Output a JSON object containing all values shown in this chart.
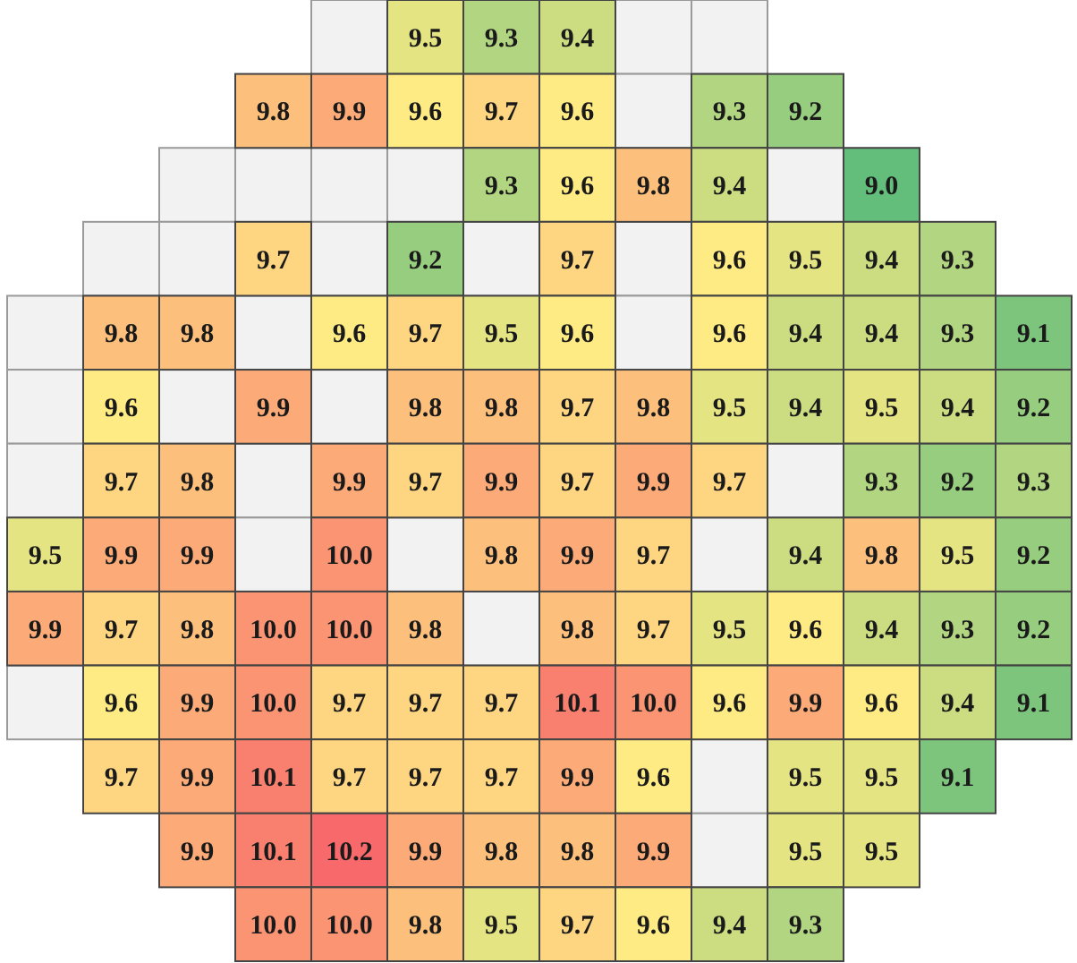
{
  "chart_data": {
    "type": "heatmap",
    "categories": [
      null,
      null,
      null,
      null,
      null,
      null,
      null,
      null,
      null,
      null,
      null,
      null,
      null,
      null
    ],
    "y_categories": [
      null,
      null,
      null,
      null,
      null,
      null,
      null,
      null,
      null,
      null,
      null,
      null,
      null
    ],
    "cells": [
      [
        null,
        null,
        null,
        null,
        null,
        9.5,
        9.3,
        9.4,
        null,
        null,
        null,
        null,
        null,
        null
      ],
      [
        null,
        null,
        null,
        9.8,
        9.9,
        9.6,
        9.7,
        9.6,
        null,
        9.3,
        9.2,
        null,
        null,
        null
      ],
      [
        null,
        null,
        null,
        null,
        null,
        null,
        9.3,
        9.6,
        9.8,
        9.4,
        null,
        9.0,
        null,
        null
      ],
      [
        null,
        null,
        null,
        9.7,
        null,
        9.2,
        null,
        9.7,
        null,
        9.6,
        9.5,
        9.4,
        9.3,
        null
      ],
      [
        null,
        9.8,
        9.8,
        null,
        9.6,
        9.7,
        9.5,
        9.6,
        null,
        9.6,
        9.4,
        9.4,
        9.3,
        9.1
      ],
      [
        null,
        9.6,
        null,
        9.9,
        null,
        9.8,
        9.8,
        9.7,
        9.8,
        9.5,
        9.4,
        9.5,
        9.4,
        9.2
      ],
      [
        null,
        9.7,
        9.8,
        null,
        9.9,
        9.7,
        9.9,
        9.7,
        9.9,
        9.7,
        null,
        9.3,
        9.2,
        9.3
      ],
      [
        9.5,
        9.9,
        9.9,
        null,
        10.0,
        null,
        9.8,
        9.9,
        9.7,
        null,
        9.4,
        9.8,
        9.5,
        9.2
      ],
      [
        9.9,
        9.7,
        9.8,
        10.0,
        10.0,
        9.8,
        null,
        9.8,
        9.7,
        9.5,
        9.6,
        9.4,
        9.3,
        9.2
      ],
      [
        null,
        9.6,
        9.9,
        10.0,
        9.7,
        9.7,
        9.7,
        10.1,
        10.0,
        9.6,
        9.9,
        9.6,
        9.4,
        9.1
      ],
      [
        null,
        9.7,
        9.9,
        10.1,
        9.7,
        9.7,
        9.7,
        9.9,
        9.6,
        null,
        9.5,
        9.5,
        9.1,
        null
      ],
      [
        null,
        null,
        9.9,
        10.1,
        10.2,
        9.9,
        9.8,
        9.8,
        9.9,
        null,
        9.5,
        9.5,
        null,
        null
      ],
      [
        null,
        null,
        null,
        10.0,
        10.0,
        9.8,
        9.5,
        9.7,
        9.6,
        9.4,
        9.3,
        null,
        null,
        null
      ]
    ],
    "cell_labels": [
      [
        null,
        null,
        null,
        null,
        null,
        "9.5",
        "9.3",
        "9.4",
        null,
        null,
        null,
        null,
        null,
        null
      ],
      [
        null,
        null,
        null,
        "9.8",
        "9.9",
        "9.6",
        "9.7",
        "9.6",
        null,
        "9.3",
        "9.2",
        null,
        null,
        null
      ],
      [
        null,
        null,
        null,
        null,
        null,
        null,
        "9.3",
        "9.6",
        "9.8",
        "9.4",
        null,
        "9.0",
        null,
        null
      ],
      [
        null,
        null,
        null,
        "9.7",
        null,
        "9.2",
        null,
        "9.7",
        null,
        "9.6",
        "9.5",
        "9.4",
        "9.3",
        null
      ],
      [
        null,
        "9.8",
        "9.8",
        null,
        "9.6",
        "9.7",
        "9.5",
        "9.6",
        null,
        "9.6",
        "9.4",
        "9.4",
        "9.3",
        "9.1"
      ],
      [
        null,
        "9.6",
        null,
        "9.9",
        null,
        "9.8",
        "9.8",
        "9.7",
        "9.8",
        "9.5",
        "9.4",
        "9.5",
        "9.4",
        "9.2"
      ],
      [
        null,
        "9.7",
        "9.8",
        null,
        "9.9",
        "9.7",
        "9.9",
        "9.7",
        "9.9",
        "9.7",
        null,
        "9.3",
        "9.2",
        "9.3"
      ],
      [
        "9.5",
        "9.9",
        "9.9",
        null,
        "10.0",
        null,
        "9.8",
        "9.9",
        "9.7",
        null,
        "9.4",
        "9.8",
        "9.5",
        "9.2"
      ],
      [
        "9.9",
        "9.7",
        "9.8",
        "10.0",
        "10.0",
        "9.8",
        null,
        "9.8",
        "9.7",
        "9.5",
        "9.6",
        "9.4",
        "9.3",
        "9.2"
      ],
      [
        null,
        "9.6",
        "9.9",
        "10.0",
        "9.7",
        "9.7",
        "9.7",
        "10.1",
        "10.0",
        "9.6",
        "9.9",
        "9.6",
        "9.4",
        "9.1"
      ],
      [
        null,
        "9.7",
        "9.9",
        "10.1",
        "9.7",
        "9.7",
        "9.7",
        "9.9",
        "9.6",
        null,
        "9.5",
        "9.5",
        "9.1",
        null
      ],
      [
        null,
        null,
        "9.9",
        "10.1",
        "10.2",
        "9.9",
        "9.8",
        "9.8",
        "9.9",
        null,
        "9.5",
        "9.5",
        null,
        null
      ],
      [
        null,
        null,
        null,
        "10.0",
        "10.0",
        "9.8",
        "9.5",
        "9.7",
        "9.6",
        "9.4",
        "9.3",
        null,
        null,
        null
      ]
    ],
    "data_labels": true
  }
}
